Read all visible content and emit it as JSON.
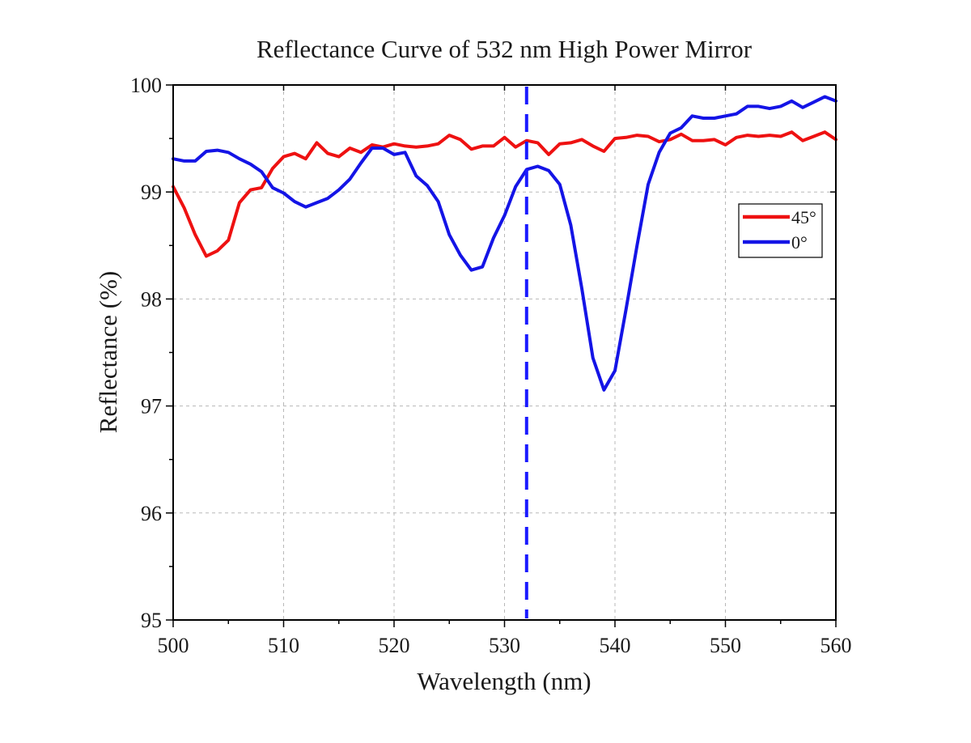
{
  "chart_data": {
    "type": "line",
    "title": "Reflectance Curve of 532 nm High Power Mirror",
    "xlabel": "Wavelength (nm)",
    "ylabel": "Reflectance (%)",
    "xlim": [
      500,
      560
    ],
    "ylim": [
      95,
      100
    ],
    "xticks": [
      500,
      510,
      520,
      530,
      540,
      550,
      560
    ],
    "yticks": [
      95,
      96,
      97,
      98,
      99,
      100
    ],
    "grid": true,
    "legend_position": "right",
    "marker_line": {
      "x": 532,
      "color": "#1a1aff",
      "style": "dashed"
    },
    "series": [
      {
        "name": "45°",
        "color": "#ee1111",
        "x": [
          500,
          501,
          502,
          503,
          504,
          505,
          506,
          507,
          508,
          509,
          510,
          511,
          512,
          513,
          514,
          515,
          516,
          517,
          518,
          519,
          520,
          521,
          522,
          523,
          524,
          525,
          526,
          527,
          528,
          529,
          530,
          531,
          532,
          533,
          534,
          535,
          536,
          537,
          538,
          539,
          540,
          541,
          542,
          543,
          544,
          545,
          546,
          547,
          548,
          549,
          550,
          551,
          552,
          553,
          554,
          555,
          556,
          557,
          558,
          559,
          560
        ],
        "y": [
          99.05,
          98.85,
          98.6,
          98.4,
          98.45,
          98.55,
          98.9,
          99.02,
          99.04,
          99.22,
          99.33,
          99.36,
          99.31,
          99.46,
          99.36,
          99.33,
          99.41,
          99.37,
          99.44,
          99.42,
          99.45,
          99.43,
          99.42,
          99.43,
          99.45,
          99.53,
          99.49,
          99.4,
          99.43,
          99.43,
          99.51,
          99.42,
          99.48,
          99.46,
          99.35,
          99.45,
          99.46,
          99.49,
          99.43,
          99.38,
          99.5,
          99.51,
          99.53,
          99.52,
          99.47,
          99.49,
          99.54,
          99.48,
          99.48,
          99.49,
          99.44,
          99.51,
          99.53,
          99.52,
          99.53,
          99.52,
          99.56,
          99.48,
          99.52,
          99.56,
          99.49
        ]
      },
      {
        "name": "0°",
        "color": "#1414e6",
        "x": [
          500,
          501,
          502,
          503,
          504,
          505,
          506,
          507,
          508,
          509,
          510,
          511,
          512,
          513,
          514,
          515,
          516,
          517,
          518,
          519,
          520,
          521,
          522,
          523,
          524,
          525,
          526,
          527,
          528,
          529,
          530,
          531,
          532,
          533,
          534,
          535,
          536,
          537,
          538,
          539,
          540,
          541,
          542,
          543,
          544,
          545,
          546,
          547,
          548,
          549,
          550,
          551,
          552,
          553,
          554,
          555,
          556,
          557,
          558,
          559,
          560
        ],
        "y": [
          99.31,
          99.29,
          99.29,
          99.38,
          99.39,
          99.37,
          99.31,
          99.26,
          99.19,
          99.04,
          98.99,
          98.91,
          98.86,
          98.9,
          98.94,
          99.02,
          99.12,
          99.27,
          99.41,
          99.41,
          99.35,
          99.37,
          99.15,
          99.06,
          98.91,
          98.6,
          98.41,
          98.27,
          98.3,
          98.57,
          98.78,
          99.05,
          99.21,
          99.24,
          99.2,
          99.07,
          98.69,
          98.1,
          97.45,
          97.15,
          97.33,
          97.9,
          98.5,
          99.07,
          99.37,
          99.55,
          99.6,
          99.71,
          99.69,
          99.69,
          99.71,
          99.73,
          99.8,
          99.8,
          99.78,
          99.8,
          99.85,
          99.79,
          99.84,
          99.89,
          99.85
        ]
      }
    ]
  }
}
